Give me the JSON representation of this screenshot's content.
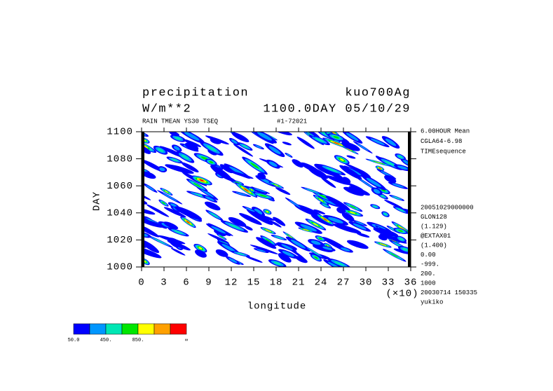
{
  "chart_data": {
    "type": "hovmoller",
    "title": "precipitation",
    "experiment": "kuo700Ag",
    "units": "W/m**2",
    "time_label": "1100.0DAY 05/10/29",
    "subtitle": "RAIN TMEAN YS30 TSEQ",
    "run_id": "#1-72021",
    "x_label": "longitude",
    "x_scale_label": "(×10)",
    "y_label": "DAY",
    "xlim": [
      0,
      36
    ],
    "xticks": [
      0,
      3,
      6,
      9,
      12,
      15,
      18,
      21,
      24,
      27,
      30,
      33,
      36
    ],
    "ylim": [
      1000,
      1100
    ],
    "yticks": [
      1000,
      1020,
      1040,
      1060,
      1080,
      1100
    ],
    "notes": [
      "6.00HOUR Mean",
      "CGLA64-6.98",
      "TIMEsequence",
      "20051029000000",
      "GLON128",
      "(1.129)",
      "@EXTAX01",
      "(1.400)",
      "0.00",
      "-999.",
      "200.",
      "1000",
      "20030714 150335",
      "yukiko"
    ],
    "colorbar": {
      "colors": [
        "#0000ff",
        "#0096ff",
        "#00e6b4",
        "#00e600",
        "#ffff00",
        "#ffa000",
        "#ff0000"
      ],
      "levels": [
        50,
        250,
        450,
        650,
        850,
        1050,
        1250
      ],
      "ticks": [
        {
          "value": 50,
          "label": "50.0"
        },
        {
          "value": 450,
          "label": "450."
        },
        {
          "value": 850,
          "label": "850."
        }
      ],
      "end_label": "∞"
    }
  }
}
